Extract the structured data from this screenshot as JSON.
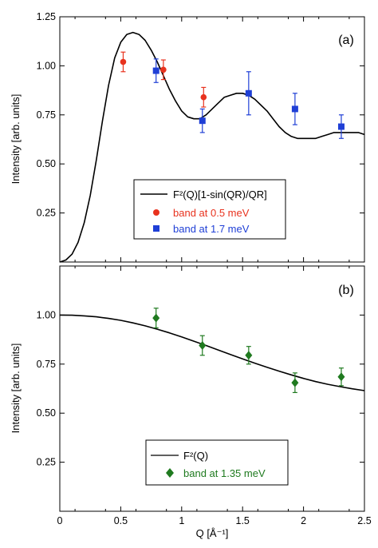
{
  "colors": {
    "red": "#e8321e",
    "blue": "#1f3fd6",
    "green": "#1f7a1f",
    "curve": "#000000"
  },
  "chart_data": [
    {
      "type": "scatter",
      "panel_label": "(a)",
      "ylabel": "Intensity [arb. units]",
      "xlim": [
        0,
        2.5
      ],
      "ylim": [
        0,
        1.25
      ],
      "yticks": [
        "0.25",
        "0.50",
        "0.75",
        "1.00",
        "1.25"
      ],
      "legend_position": "lower-center",
      "curve": {
        "name": "F²(Q)[1-sin(QR)/QR]",
        "x": [
          0,
          0.05,
          0.1,
          0.15,
          0.2,
          0.25,
          0.3,
          0.35,
          0.4,
          0.45,
          0.5,
          0.55,
          0.6,
          0.65,
          0.7,
          0.75,
          0.8,
          0.85,
          0.9,
          0.95,
          1.0,
          1.05,
          1.1,
          1.15,
          1.2,
          1.25,
          1.3,
          1.35,
          1.4,
          1.45,
          1.5,
          1.55,
          1.6,
          1.65,
          1.7,
          1.75,
          1.8,
          1.85,
          1.9,
          1.95,
          2.0,
          2.05,
          2.1,
          2.15,
          2.2,
          2.25,
          2.3,
          2.35,
          2.4,
          2.45,
          2.5
        ],
        "y": [
          0,
          0.01,
          0.04,
          0.1,
          0.2,
          0.34,
          0.52,
          0.72,
          0.9,
          1.04,
          1.12,
          1.16,
          1.17,
          1.16,
          1.13,
          1.08,
          1.02,
          0.95,
          0.88,
          0.82,
          0.77,
          0.74,
          0.73,
          0.73,
          0.75,
          0.78,
          0.81,
          0.84,
          0.85,
          0.86,
          0.86,
          0.85,
          0.83,
          0.8,
          0.77,
          0.73,
          0.69,
          0.66,
          0.64,
          0.63,
          0.63,
          0.63,
          0.63,
          0.64,
          0.65,
          0.66,
          0.66,
          0.66,
          0.66,
          0.66,
          0.65
        ]
      },
      "series": [
        {
          "name": "band at 0.5 meV",
          "marker": "circle",
          "color": "#e8321e",
          "x": [
            0.52,
            0.85,
            1.18
          ],
          "y": [
            1.02,
            0.98,
            0.84
          ],
          "err": [
            0.05,
            0.05,
            0.05
          ]
        },
        {
          "name": "band at 1.7 meV",
          "marker": "square",
          "color": "#1f3fd6",
          "x": [
            0.79,
            1.17,
            1.55,
            1.93,
            2.31
          ],
          "y": [
            0.975,
            0.72,
            0.86,
            0.78,
            0.69
          ],
          "err": [
            0.06,
            0.06,
            0.11,
            0.08,
            0.06
          ]
        }
      ]
    },
    {
      "type": "scatter",
      "panel_label": "(b)",
      "ylabel": "Intensity [arb. units]",
      "xlabel": "Q [Å⁻¹]",
      "xlim": [
        0,
        2.5
      ],
      "ylim": [
        0,
        1.25
      ],
      "xticks": [
        "0",
        "0.5",
        "1",
        "1.5",
        "2",
        "2.5"
      ],
      "yticks": [
        "0.25",
        "0.50",
        "0.75",
        "1.00"
      ],
      "legend_position": "lower-center",
      "curve": {
        "name": "F²(Q)",
        "x": [
          0,
          0.1,
          0.2,
          0.3,
          0.4,
          0.5,
          0.6,
          0.7,
          0.8,
          0.9,
          1.0,
          1.1,
          1.2,
          1.3,
          1.4,
          1.5,
          1.6,
          1.7,
          1.8,
          1.9,
          2.0,
          2.1,
          2.2,
          2.3,
          2.4,
          2.5
        ],
        "y": [
          1.0,
          0.999,
          0.996,
          0.991,
          0.983,
          0.973,
          0.96,
          0.945,
          0.928,
          0.909,
          0.889,
          0.867,
          0.845,
          0.822,
          0.799,
          0.777,
          0.755,
          0.734,
          0.714,
          0.695,
          0.677,
          0.661,
          0.647,
          0.635,
          0.624,
          0.615
        ]
      },
      "series": [
        {
          "name": "band at 1.35 meV",
          "marker": "diamond",
          "color": "#1f7a1f",
          "x": [
            0.79,
            1.17,
            1.55,
            1.93,
            2.31
          ],
          "y": [
            0.985,
            0.845,
            0.795,
            0.655,
            0.685
          ],
          "err": [
            0.05,
            0.05,
            0.045,
            0.05,
            0.045
          ]
        }
      ]
    }
  ]
}
